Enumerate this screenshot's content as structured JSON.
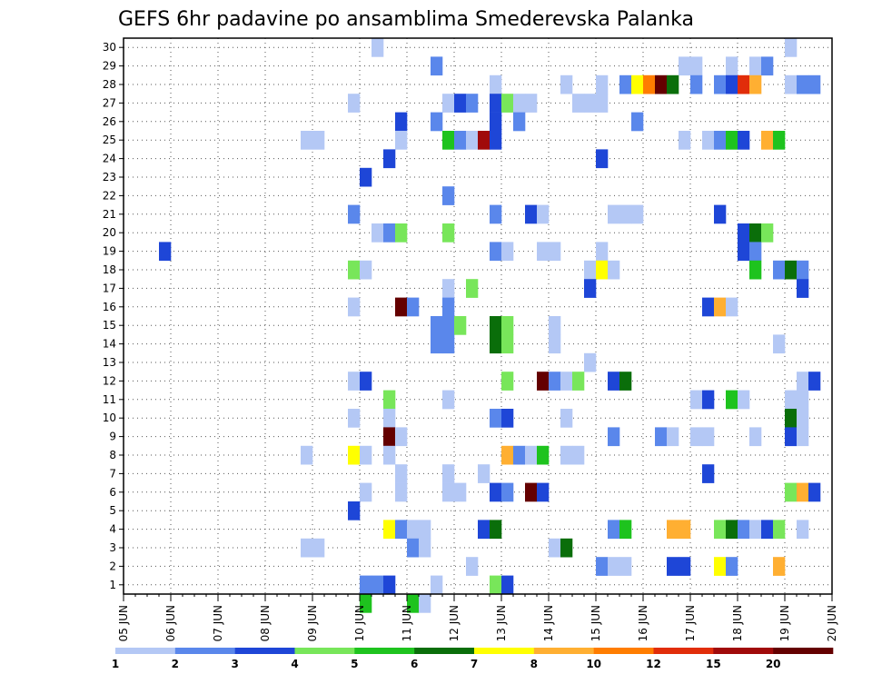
{
  "chart_data": {
    "type": "heatmap",
    "title": "GEFS 6hr padavine po ansamblima Smederevska Palanka",
    "x_tick_labels": [
      "05 JUN",
      "06 JUN",
      "07 JUN",
      "08 JUN",
      "09 JUN",
      "10 JUN",
      "11 JUN",
      "12 JUN",
      "13 JUN",
      "14 JUN",
      "15 JUN",
      "16 JUN",
      "17 JUN",
      "18 JUN",
      "19 JUN",
      "20 JUN"
    ],
    "y_tick_labels": [
      "1",
      "2",
      "3",
      "4",
      "5",
      "6",
      "7",
      "8",
      "9",
      "10",
      "11",
      "12",
      "13",
      "14",
      "15",
      "16",
      "17",
      "18",
      "19",
      "20",
      "21",
      "22",
      "23",
      "24",
      "25",
      "26",
      "27",
      "28",
      "29",
      "30"
    ],
    "x_unit": "6-hour step from 05 JUN 00Z",
    "x_range": [
      0,
      60
    ],
    "y_range": [
      0.5,
      30.5
    ],
    "grid": true,
    "legend": {
      "position": "bottom",
      "labels": [
        "1",
        "2",
        "3",
        "4",
        "5",
        "6",
        "7",
        "8",
        "10",
        "12",
        "15",
        "20"
      ],
      "colors": [
        "#b4c8f5",
        "#5a87eb",
        "#1e46d7",
        "#78e65a",
        "#1ec31e",
        "#0a6e0a",
        "#ffff00",
        "#ffaf32",
        "#ff7d00",
        "#e12d0a",
        "#a00a0a",
        "#640000"
      ]
    },
    "cells": [
      [
        21,
        30,
        0
      ],
      [
        56,
        30,
        0
      ],
      [
        26,
        29,
        1
      ],
      [
        47,
        29,
        0
      ],
      [
        48,
        29,
        0
      ],
      [
        51,
        29,
        0
      ],
      [
        53,
        29,
        0
      ],
      [
        54,
        29,
        1
      ],
      [
        31,
        28,
        0
      ],
      [
        37,
        28,
        0
      ],
      [
        40,
        28,
        0
      ],
      [
        42,
        28,
        1
      ],
      [
        43,
        28,
        6
      ],
      [
        44,
        28,
        8
      ],
      [
        45,
        28,
        11
      ],
      [
        46,
        28,
        5
      ],
      [
        48,
        28,
        1
      ],
      [
        50,
        28,
        1
      ],
      [
        51,
        28,
        2
      ],
      [
        52,
        28,
        9
      ],
      [
        53,
        28,
        7
      ],
      [
        56,
        28,
        0
      ],
      [
        57,
        28,
        1
      ],
      [
        58,
        28,
        1
      ],
      [
        19,
        27,
        0
      ],
      [
        27,
        27,
        0
      ],
      [
        28,
        27,
        2
      ],
      [
        29,
        27,
        1
      ],
      [
        31,
        27,
        2
      ],
      [
        32,
        27,
        3
      ],
      [
        33,
        27,
        0
      ],
      [
        34,
        27,
        0
      ],
      [
        38,
        27,
        0
      ],
      [
        39,
        27,
        0
      ],
      [
        40,
        27,
        0
      ],
      [
        23,
        26,
        2
      ],
      [
        26,
        26,
        1
      ],
      [
        31,
        26,
        2
      ],
      [
        33,
        26,
        1
      ],
      [
        43,
        26,
        1
      ],
      [
        15,
        25,
        0
      ],
      [
        16,
        25,
        0
      ],
      [
        23,
        25,
        0
      ],
      [
        27,
        25,
        4
      ],
      [
        28,
        25,
        1
      ],
      [
        29,
        25,
        0
      ],
      [
        30,
        25,
        10
      ],
      [
        31,
        25,
        2
      ],
      [
        47,
        25,
        0
      ],
      [
        49,
        25,
        0
      ],
      [
        50,
        25,
        1
      ],
      [
        51,
        25,
        4
      ],
      [
        52,
        25,
        2
      ],
      [
        54,
        25,
        7
      ],
      [
        55,
        25,
        4
      ],
      [
        22,
        24,
        2
      ],
      [
        40,
        24,
        2
      ],
      [
        20,
        23,
        2
      ],
      [
        27,
        22,
        1
      ],
      [
        19,
        21,
        1
      ],
      [
        31,
        21,
        1
      ],
      [
        34,
        21,
        2
      ],
      [
        35,
        21,
        0
      ],
      [
        41,
        21,
        0
      ],
      [
        42,
        21,
        0
      ],
      [
        43,
        21,
        0
      ],
      [
        50,
        21,
        2
      ],
      [
        21,
        20,
        0
      ],
      [
        22,
        20,
        1
      ],
      [
        23,
        20,
        3
      ],
      [
        27,
        20,
        3
      ],
      [
        52,
        20,
        2
      ],
      [
        53,
        20,
        5
      ],
      [
        54,
        20,
        3
      ],
      [
        3,
        19,
        2
      ],
      [
        31,
        19,
        1
      ],
      [
        32,
        19,
        0
      ],
      [
        35,
        19,
        0
      ],
      [
        36,
        19,
        0
      ],
      [
        40,
        19,
        0
      ],
      [
        52,
        19,
        2
      ],
      [
        53,
        19,
        1
      ],
      [
        19,
        18,
        3
      ],
      [
        20,
        18,
        0
      ],
      [
        39,
        18,
        0
      ],
      [
        40,
        18,
        6
      ],
      [
        41,
        18,
        0
      ],
      [
        53,
        18,
        4
      ],
      [
        55,
        18,
        1
      ],
      [
        56,
        18,
        5
      ],
      [
        57,
        18,
        1
      ],
      [
        27,
        17,
        0
      ],
      [
        29,
        17,
        3
      ],
      [
        39,
        17,
        2
      ],
      [
        57,
        17,
        2
      ],
      [
        19,
        16,
        0
      ],
      [
        23,
        16,
        11
      ],
      [
        24,
        16,
        1
      ],
      [
        27,
        16,
        1
      ],
      [
        49,
        16,
        2
      ],
      [
        50,
        16,
        7
      ],
      [
        51,
        16,
        0
      ],
      [
        26,
        15,
        1
      ],
      [
        27,
        15,
        1
      ],
      [
        28,
        15,
        3
      ],
      [
        31,
        15,
        5
      ],
      [
        32,
        15,
        3
      ],
      [
        36,
        15,
        0
      ],
      [
        26,
        14,
        1
      ],
      [
        27,
        14,
        1
      ],
      [
        31,
        14,
        5
      ],
      [
        32,
        14,
        3
      ],
      [
        36,
        14,
        0
      ],
      [
        55,
        14,
        0
      ],
      [
        39,
        13,
        0
      ],
      [
        19,
        12,
        0
      ],
      [
        20,
        12,
        2
      ],
      [
        32,
        12,
        3
      ],
      [
        35,
        12,
        11
      ],
      [
        36,
        12,
        1
      ],
      [
        37,
        12,
        0
      ],
      [
        38,
        12,
        3
      ],
      [
        41,
        12,
        2
      ],
      [
        42,
        12,
        5
      ],
      [
        57,
        12,
        0
      ],
      [
        58,
        12,
        2
      ],
      [
        22,
        11,
        3
      ],
      [
        27,
        11,
        0
      ],
      [
        48,
        11,
        0
      ],
      [
        49,
        11,
        2
      ],
      [
        51,
        11,
        4
      ],
      [
        52,
        11,
        0
      ],
      [
        56,
        11,
        0
      ],
      [
        57,
        11,
        0
      ],
      [
        19,
        10,
        0
      ],
      [
        22,
        10,
        0
      ],
      [
        31,
        10,
        1
      ],
      [
        32,
        10,
        2
      ],
      [
        37,
        10,
        0
      ],
      [
        56,
        10,
        5
      ],
      [
        57,
        10,
        0
      ],
      [
        22,
        9,
        11
      ],
      [
        23,
        9,
        0
      ],
      [
        41,
        9,
        1
      ],
      [
        45,
        9,
        1
      ],
      [
        46,
        9,
        0
      ],
      [
        48,
        9,
        0
      ],
      [
        49,
        9,
        0
      ],
      [
        53,
        9,
        0
      ],
      [
        56,
        9,
        2
      ],
      [
        57,
        9,
        0
      ],
      [
        15,
        8,
        0
      ],
      [
        19,
        8,
        6
      ],
      [
        20,
        8,
        0
      ],
      [
        22,
        8,
        0
      ],
      [
        32,
        8,
        7
      ],
      [
        33,
        8,
        1
      ],
      [
        34,
        8,
        0
      ],
      [
        35,
        8,
        4
      ],
      [
        37,
        8,
        0
      ],
      [
        38,
        8,
        0
      ],
      [
        23,
        7,
        0
      ],
      [
        27,
        7,
        0
      ],
      [
        30,
        7,
        0
      ],
      [
        49,
        7,
        2
      ],
      [
        20,
        6,
        0
      ],
      [
        23,
        6,
        0
      ],
      [
        27,
        6,
        0
      ],
      [
        28,
        6,
        0
      ],
      [
        31,
        6,
        2
      ],
      [
        32,
        6,
        1
      ],
      [
        34,
        6,
        11
      ],
      [
        35,
        6,
        2
      ],
      [
        56,
        6,
        3
      ],
      [
        57,
        6,
        7
      ],
      [
        58,
        6,
        2
      ],
      [
        19,
        5,
        2
      ],
      [
        22,
        4,
        6
      ],
      [
        23,
        4,
        1
      ],
      [
        24,
        4,
        0
      ],
      [
        25,
        4,
        0
      ],
      [
        30,
        4,
        2
      ],
      [
        31,
        4,
        5
      ],
      [
        41,
        4,
        1
      ],
      [
        42,
        4,
        4
      ],
      [
        46,
        4,
        7
      ],
      [
        47,
        4,
        7
      ],
      [
        50,
        4,
        3
      ],
      [
        51,
        4,
        5
      ],
      [
        52,
        4,
        1
      ],
      [
        53,
        4,
        0
      ],
      [
        54,
        4,
        2
      ],
      [
        55,
        4,
        3
      ],
      [
        57,
        4,
        0
      ],
      [
        15,
        3,
        0
      ],
      [
        16,
        3,
        0
      ],
      [
        24,
        3,
        1
      ],
      [
        25,
        3,
        0
      ],
      [
        36,
        3,
        0
      ],
      [
        37,
        3,
        5
      ],
      [
        29,
        2,
        0
      ],
      [
        40,
        2,
        1
      ],
      [
        41,
        2,
        0
      ],
      [
        42,
        2,
        0
      ],
      [
        46,
        2,
        2
      ],
      [
        47,
        2,
        2
      ],
      [
        50,
        2,
        6
      ],
      [
        51,
        2,
        1
      ],
      [
        55,
        2,
        7
      ],
      [
        20,
        1,
        1
      ],
      [
        21,
        1,
        1
      ],
      [
        22,
        1,
        2
      ],
      [
        26,
        1,
        0
      ],
      [
        31,
        1,
        3
      ],
      [
        32,
        1,
        2
      ],
      [
        20,
        0,
        4
      ],
      [
        24,
        0,
        4
      ],
      [
        25,
        0,
        0
      ]
    ]
  }
}
